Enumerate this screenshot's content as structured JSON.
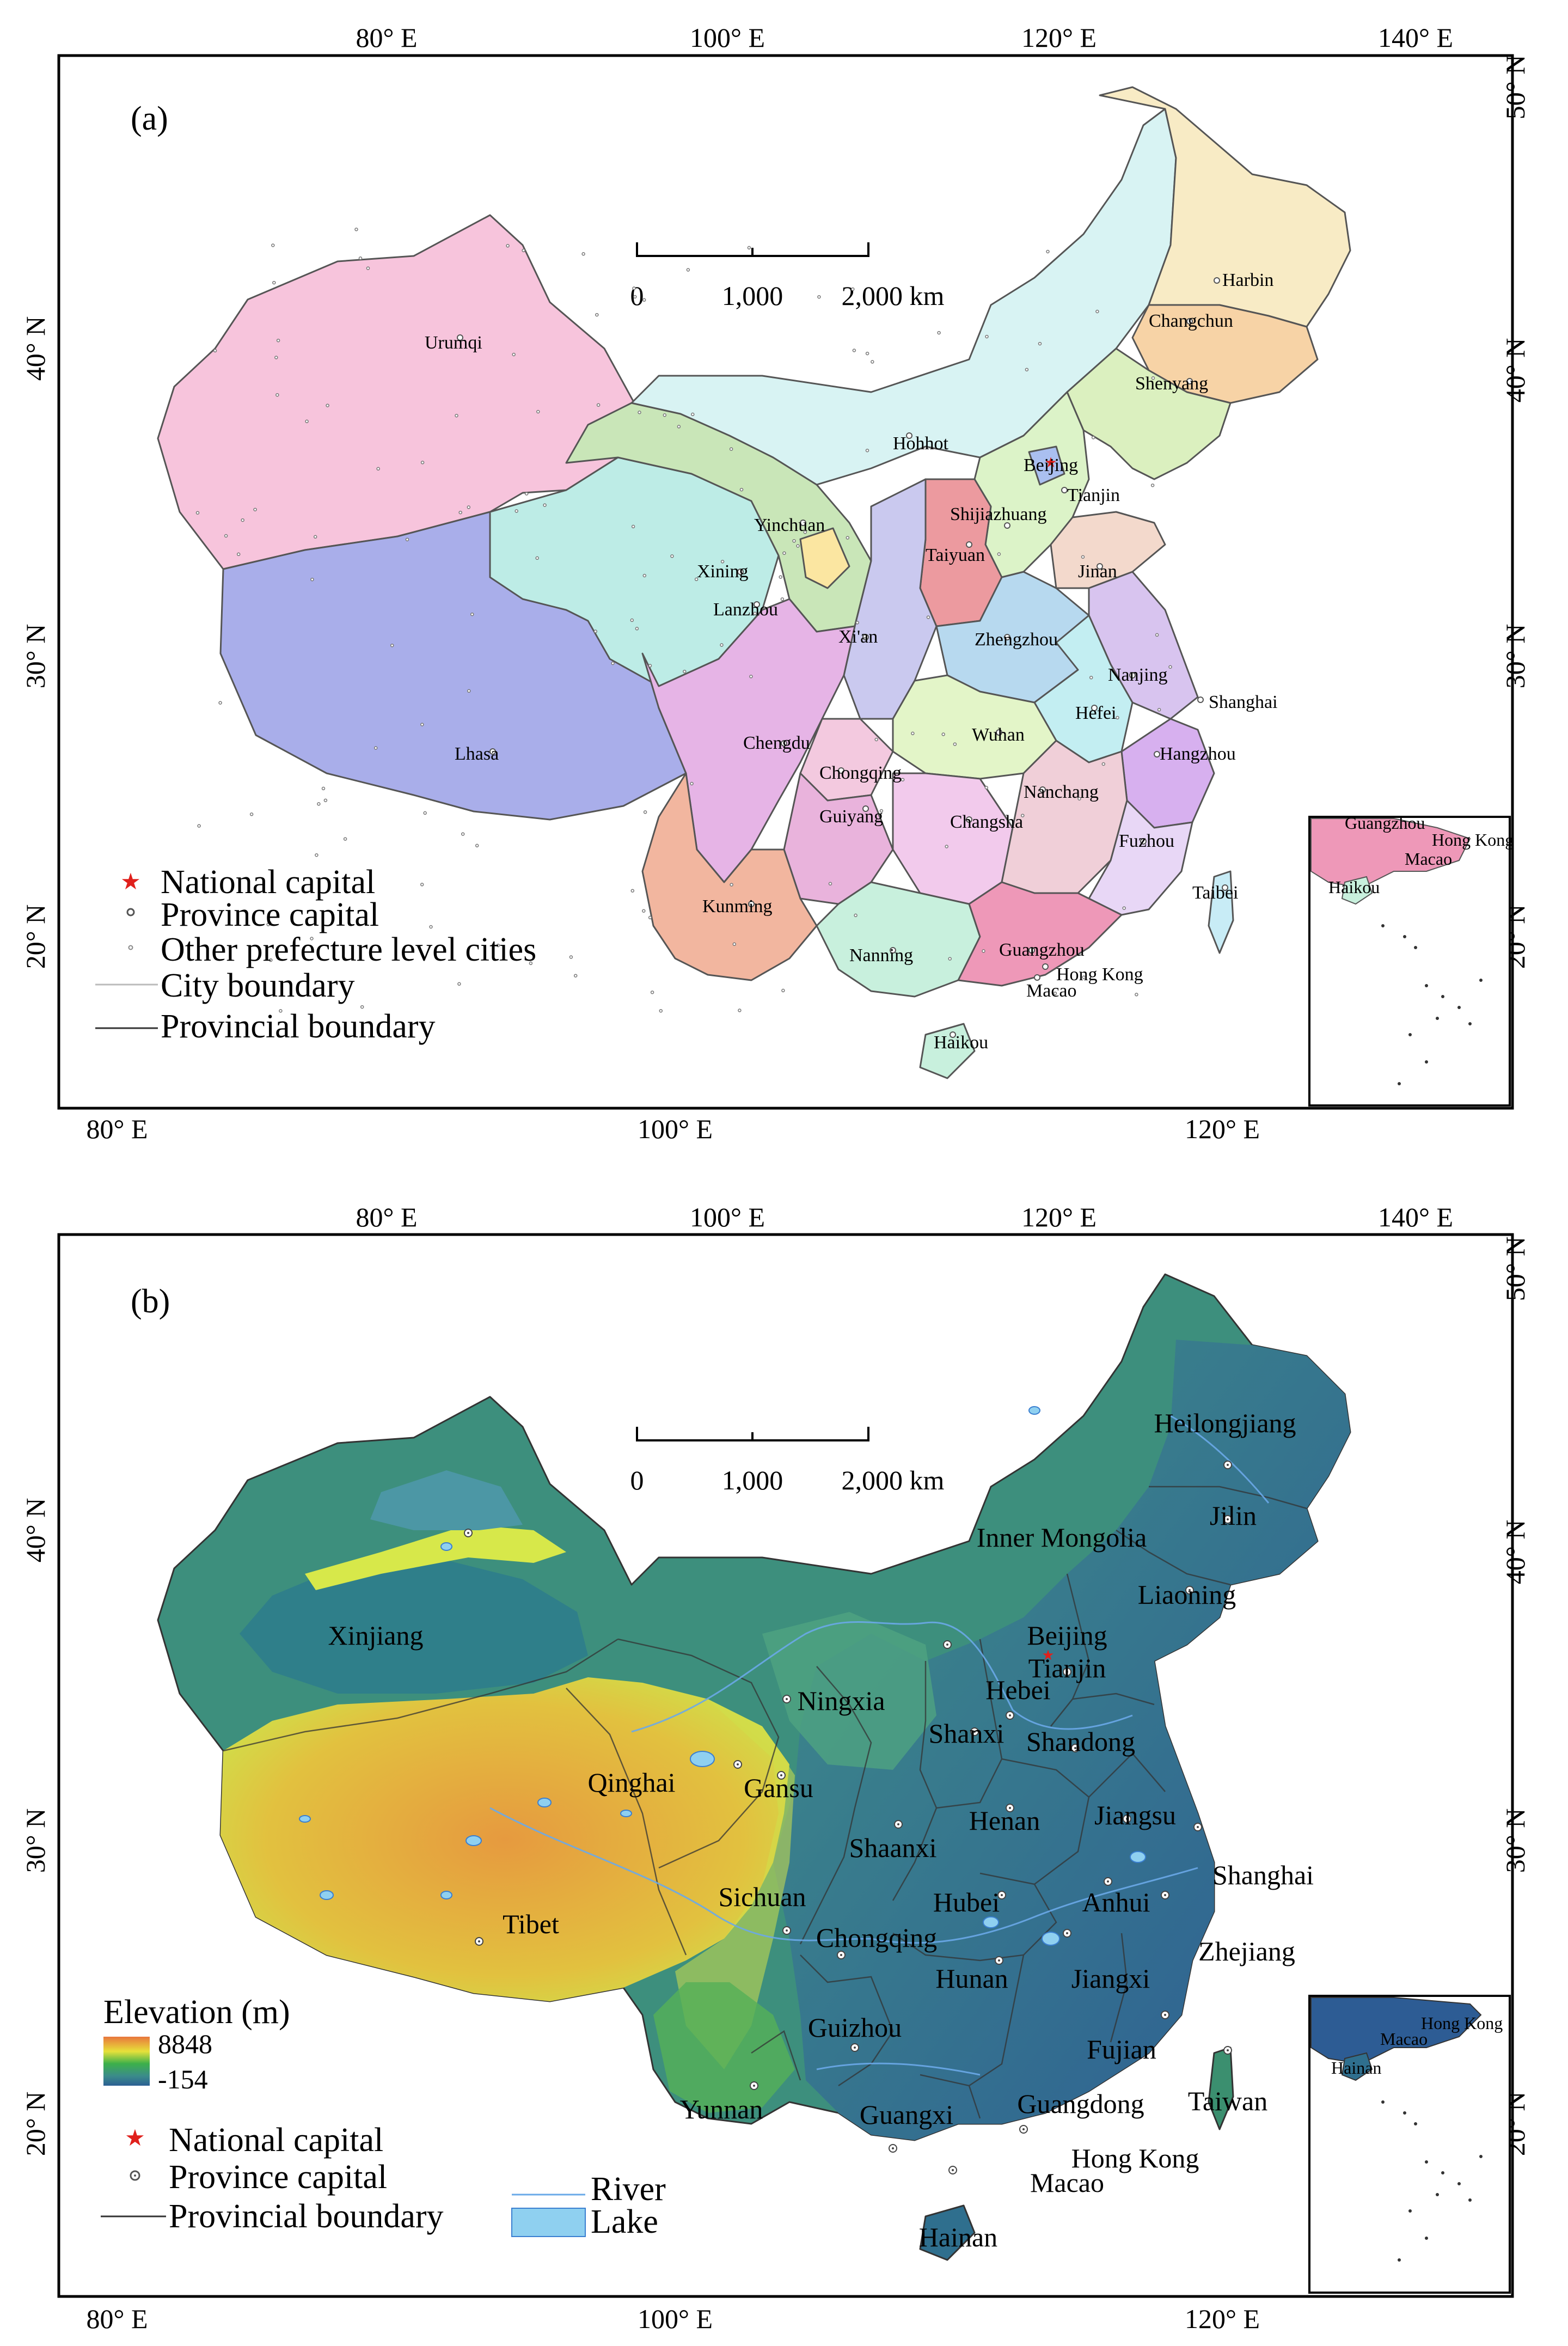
{
  "panel_a": {
    "label": "(a)",
    "scalebar": {
      "ticks": [
        "0",
        "1,000",
        "2,000 km"
      ]
    },
    "graticule": {
      "top": [
        "80° E",
        "100° E",
        "120° E",
        "140° E"
      ],
      "bottom": [
        "80° E",
        "100° E",
        "120° E"
      ],
      "left": [
        "40° N",
        "30° N",
        "20° N"
      ],
      "right": [
        "50° N",
        "40° N",
        "30° N",
        "20° N"
      ]
    },
    "cities": [
      {
        "name": "Harbin",
        "type": "province"
      },
      {
        "name": "Changchun",
        "type": "province"
      },
      {
        "name": "Shenyang",
        "type": "province"
      },
      {
        "name": "Urumqi",
        "type": "province"
      },
      {
        "name": "Hohhot",
        "type": "province"
      },
      {
        "name": "Beijing",
        "type": "national"
      },
      {
        "name": "Tianjin",
        "type": "province"
      },
      {
        "name": "Yinchuan",
        "type": "province"
      },
      {
        "name": "Shijiazhuang",
        "type": "province"
      },
      {
        "name": "Taiyuan",
        "type": "province"
      },
      {
        "name": "Jinan",
        "type": "province"
      },
      {
        "name": "Xining",
        "type": "province"
      },
      {
        "name": "Lanzhou",
        "type": "province"
      },
      {
        "name": "Xi'an",
        "type": "province"
      },
      {
        "name": "Zhengzhou",
        "type": "province"
      },
      {
        "name": "Nanjing",
        "type": "province"
      },
      {
        "name": "Shanghai",
        "type": "province"
      },
      {
        "name": "Hefei",
        "type": "province"
      },
      {
        "name": "Lhasa",
        "type": "province"
      },
      {
        "name": "Chengdu",
        "type": "province"
      },
      {
        "name": "Wuhan",
        "type": "province"
      },
      {
        "name": "Hangzhou",
        "type": "province"
      },
      {
        "name": "Chongqing",
        "type": "province"
      },
      {
        "name": "Nanchang",
        "type": "province"
      },
      {
        "name": "Changsha",
        "type": "province"
      },
      {
        "name": "Guiyang",
        "type": "province"
      },
      {
        "name": "Fuzhou",
        "type": "province"
      },
      {
        "name": "Taibei",
        "type": "province"
      },
      {
        "name": "Kunming",
        "type": "province"
      },
      {
        "name": "Guangzhou",
        "type": "province"
      },
      {
        "name": "Nanning",
        "type": "province"
      },
      {
        "name": "Hong Kong",
        "type": "province"
      },
      {
        "name": "Macao",
        "type": "province"
      },
      {
        "name": "Haikou",
        "type": "province"
      }
    ],
    "inset_labels": [
      "Guangzhou",
      "Hong Kong",
      "Macao",
      "Haikou"
    ],
    "legend": [
      {
        "symbol": "star",
        "label": "National capital"
      },
      {
        "symbol": "dot",
        "label": "Province capital"
      },
      {
        "symbol": "smalldot",
        "label": "Other prefecture level cities"
      },
      {
        "symbol": "line-light",
        "label": "City boundary"
      },
      {
        "symbol": "line-dark",
        "label": "Provincial boundary"
      }
    ]
  },
  "panel_b": {
    "label": "(b)",
    "scalebar": {
      "ticks": [
        "0",
        "1,000",
        "2,000 km"
      ]
    },
    "graticule": {
      "top": [
        "80° E",
        "100° E",
        "120° E",
        "140° E"
      ],
      "bottom": [
        "80° E",
        "100° E",
        "120° E"
      ],
      "left": [
        "40° N",
        "30° N",
        "20° N"
      ],
      "right": [
        "50° N",
        "40° N",
        "30° N",
        "20° N"
      ]
    },
    "provinces": [
      "Heilongjiang",
      "Jilin",
      "Inner Mongolia",
      "Liaoning",
      "Beijing",
      "Tianjin",
      "Hebei",
      "Xinjiang",
      "Ningxia",
      "Shanxi",
      "Shandong",
      "Qinghai",
      "Gansu",
      "Henan",
      "Jiangsu",
      "Shaanxi",
      "Shanghai",
      "Sichuan",
      "Hubei",
      "Anhui",
      "Tibet",
      "Chongqing",
      "Zhejiang",
      "Jiangxi",
      "Hunan",
      "Fujian",
      "Guizhou",
      "Yunnan",
      "Taiwan",
      "Guangdong",
      "Guangxi",
      "Hong Kong",
      "Macao",
      "Hainan"
    ],
    "inset_labels": [
      "Hong Kong",
      "Macao",
      "Hainan"
    ],
    "elevation_legend": {
      "title": "Elevation (m)",
      "max": "8848",
      "min": "-154"
    },
    "legend": [
      {
        "symbol": "star",
        "label": "National capital"
      },
      {
        "symbol": "dot",
        "label": "Province capital"
      },
      {
        "symbol": "line-dark",
        "label": "Provincial boundary"
      },
      {
        "symbol": "river",
        "label": "River"
      },
      {
        "symbol": "lake",
        "label": "Lake"
      }
    ]
  },
  "colors": {
    "elevation_high": "#e8763c",
    "elevation_mid": "#e7e13a",
    "elevation_low_green": "#3cb04a",
    "elevation_low": "#2b5f93",
    "lake": "#8fd0f0",
    "river": "#6aa9e8",
    "national_capital": "#e0201c"
  }
}
